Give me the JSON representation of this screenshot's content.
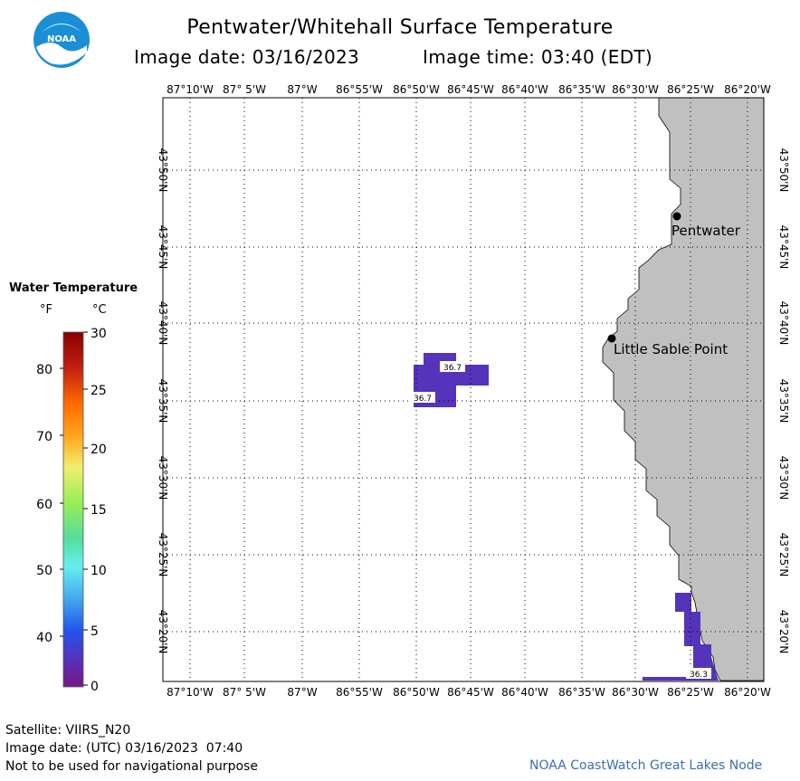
{
  "header": {
    "title": "Pentwater/Whitehall Surface Temperature",
    "image_date": "Image date: 03/16/2023",
    "image_time": "Image time: 03:40 (EDT)"
  },
  "logo": {
    "text": "NOAA",
    "icon": "noaa-logo"
  },
  "map": {
    "lon_labels": [
      "87°10'W",
      "87° 5'W",
      "87°W",
      "86°55'W",
      "86°50'W",
      "86°45'W",
      "86°40'W",
      "86°35'W",
      "86°30'W",
      "86°25'W",
      "86°20'W"
    ],
    "lat_labels": [
      "43°50'N",
      "43°45'N",
      "43°40'N",
      "43°35'N",
      "43°30'N",
      "43°25'N",
      "43°20'N"
    ],
    "places": [
      {
        "name": "Pentwater"
      },
      {
        "name": "Little Sable Point"
      }
    ],
    "temperature_labels": [
      "36.7",
      "36.7",
      "36.3"
    ],
    "colors": {
      "land": "#c0c0c0",
      "water_sst": "#5533bb",
      "grid": "#000000"
    }
  },
  "legend": {
    "title": "Water Temperature",
    "unit_f": "°F",
    "unit_c": "°C",
    "f_ticks": [
      "80",
      "70",
      "60",
      "50",
      "40"
    ],
    "c_ticks": [
      "30",
      "25",
      "20",
      "15",
      "10",
      "5",
      "0"
    ],
    "colorscale": [
      "#8b0000",
      "#d04010",
      "#ff8c00",
      "#ffcc33",
      "#f0f07a",
      "#a0ee66",
      "#55dd88",
      "#66eedd",
      "#55bbee",
      "#3377ee",
      "#3344bb",
      "#6622aa",
      "#771188"
    ]
  },
  "footer": {
    "satellite": "Satellite: VIIRS_N20",
    "utc_date": "Image date: (UTC) 03/16/2023  07:40",
    "disclaimer": "Not to be used for navigational purpose",
    "credit": "NOAA CoastWatch Great Lakes Node"
  }
}
